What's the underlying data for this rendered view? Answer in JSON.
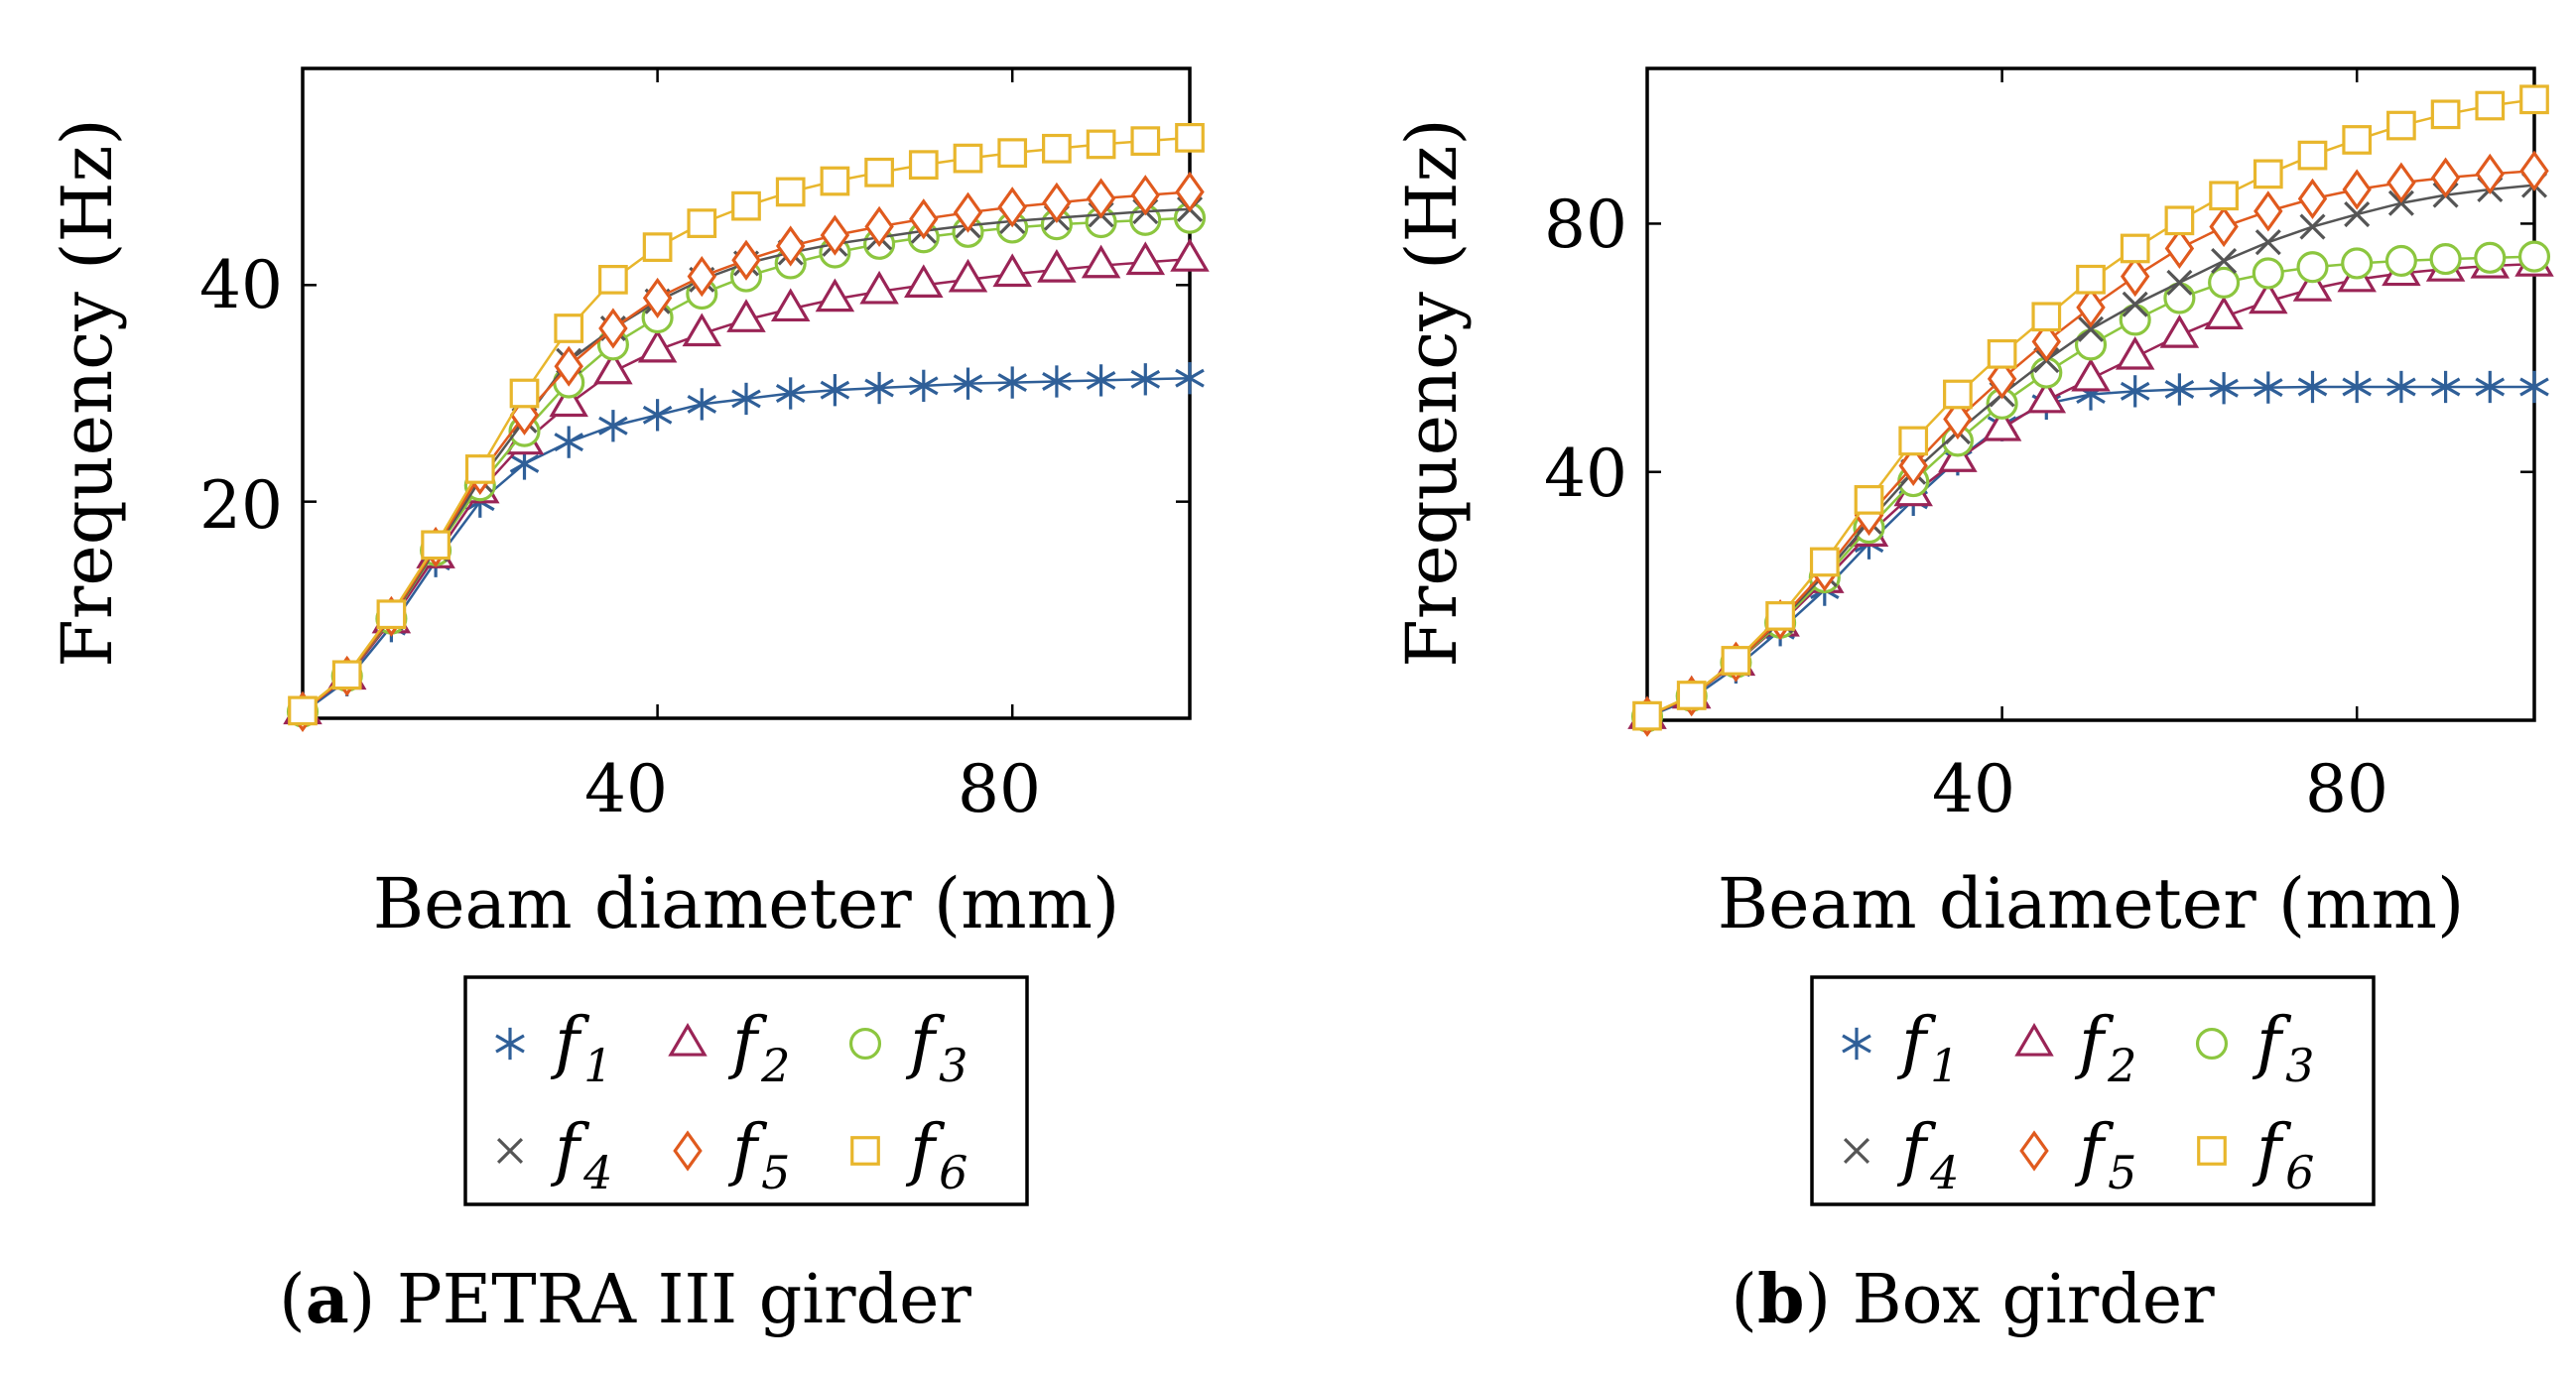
{
  "chart_data": [
    {
      "type": "line",
      "caption_letter": "a",
      "caption_text": "PETRA III girder",
      "xlabel": "Beam diameter (mm)",
      "ylabel": "Frequency (Hz)",
      "xlim": [
        0,
        100
      ],
      "ylim": [
        0,
        60
      ],
      "xticks": [
        40,
        80
      ],
      "yticks": [
        20,
        40
      ],
      "x": [
        0,
        5,
        10,
        15,
        20,
        25,
        30,
        35,
        40,
        45,
        50,
        55,
        60,
        65,
        70,
        75,
        80,
        85,
        90,
        95,
        100
      ],
      "series": [
        {
          "name": "f1",
          "base": "f",
          "sub": "1",
          "color": "#2f5f98",
          "marker": "asterisk",
          "values": [
            0.5,
            3.5,
            8.5,
            14.5,
            20,
            23.5,
            25.5,
            27,
            28,
            29,
            29.5,
            30,
            30.3,
            30.5,
            30.7,
            30.9,
            31,
            31.1,
            31.2,
            31.3,
            31.4
          ]
        },
        {
          "name": "f2",
          "base": "f",
          "sub": "2",
          "color": "#9a2456",
          "marker": "triangle",
          "values": [
            0.6,
            3.8,
            9,
            15,
            21,
            25.5,
            29,
            32,
            34,
            35.5,
            36.8,
            37.8,
            38.7,
            39.4,
            40,
            40.5,
            41,
            41.4,
            41.8,
            42.1,
            42.4
          ]
        },
        {
          "name": "f3",
          "base": "f",
          "sub": "3",
          "color": "#8cc63f",
          "marker": "circle",
          "values": [
            0.6,
            3.9,
            9.2,
            15.5,
            21.5,
            26.5,
            31,
            34.5,
            37,
            39.2,
            40.8,
            42,
            43,
            43.8,
            44.4,
            44.9,
            45.3,
            45.6,
            45.8,
            46,
            46.2
          ]
        },
        {
          "name": "f4",
          "base": "f",
          "sub": "4",
          "color": "#555555",
          "marker": "cross",
          "values": [
            0.6,
            3.9,
            9.3,
            15.6,
            22,
            27.5,
            33,
            36,
            38.5,
            40.5,
            42,
            43,
            43.8,
            44.4,
            45,
            45.5,
            45.9,
            46.2,
            46.5,
            46.8,
            47
          ]
        },
        {
          "name": "f5",
          "base": "f",
          "sub": "5",
          "color": "#e05a1e",
          "marker": "diamond",
          "values": [
            0.6,
            3.9,
            9.4,
            15.8,
            22.5,
            28,
            32.5,
            36,
            38.8,
            40.8,
            42.3,
            43.6,
            44.6,
            45.4,
            46.1,
            46.7,
            47.2,
            47.6,
            48,
            48.3,
            48.6
          ]
        },
        {
          "name": "f6",
          "base": "f",
          "sub": "6",
          "color": "#e8b62c",
          "marker": "square",
          "values": [
            0.7,
            4,
            9.6,
            16,
            23,
            30,
            36,
            40.5,
            43.5,
            45.7,
            47.3,
            48.6,
            49.6,
            50.4,
            51.1,
            51.7,
            52.2,
            52.6,
            53,
            53.3,
            53.6
          ]
        }
      ]
    },
    {
      "type": "line",
      "caption_letter": "b",
      "caption_text": "Box girder",
      "xlabel": "Beam diameter (mm)",
      "ylabel": "Frequency (Hz)",
      "xlim": [
        0,
        100
      ],
      "ylim": [
        0,
        105
      ],
      "xticks": [
        40,
        80
      ],
      "yticks": [
        40,
        80
      ],
      "x": [
        0,
        5,
        10,
        15,
        20,
        25,
        30,
        35,
        40,
        45,
        50,
        55,
        60,
        65,
        70,
        75,
        80,
        85,
        90,
        95,
        100
      ],
      "series": [
        {
          "name": "f1",
          "base": "f",
          "sub": "1",
          "color": "#2f5f98",
          "marker": "asterisk",
          "values": [
            0.5,
            3.5,
            8.5,
            14.5,
            21,
            28.5,
            35.5,
            42,
            47.5,
            51,
            52.5,
            53,
            53.3,
            53.5,
            53.6,
            53.7,
            53.7,
            53.7,
            53.7,
            53.7,
            53.7
          ]
        },
        {
          "name": "f2",
          "base": "f",
          "sub": "2",
          "color": "#9a2456",
          "marker": "triangle",
          "values": [
            0.6,
            3.9,
            9.2,
            15.5,
            22.5,
            30,
            36.5,
            42,
            47,
            51.5,
            55,
            58.5,
            62,
            65,
            67.5,
            69.5,
            71,
            72,
            72.7,
            73.2,
            73.5
          ]
        },
        {
          "name": "f3",
          "base": "f",
          "sub": "3",
          "color": "#8cc63f",
          "marker": "circle",
          "values": [
            0.6,
            3.9,
            9.3,
            15.7,
            23,
            31,
            38.5,
            45,
            51,
            56,
            60.5,
            64.5,
            68,
            70.5,
            72,
            73,
            73.6,
            74,
            74.3,
            74.5,
            74.7
          ]
        },
        {
          "name": "f4",
          "base": "f",
          "sub": "4",
          "color": "#555555",
          "marker": "cross",
          "values": [
            0.6,
            3.9,
            9.4,
            16,
            23.5,
            32,
            40,
            46.5,
            52.5,
            58,
            63,
            67,
            70.5,
            74,
            77,
            79.5,
            81.5,
            83.3,
            84.6,
            85.5,
            86.2
          ]
        },
        {
          "name": "f5",
          "base": "f",
          "sub": "5",
          "color": "#e05a1e",
          "marker": "diamond",
          "values": [
            0.6,
            3.9,
            9.4,
            16.2,
            24,
            33,
            41,
            48.5,
            55,
            61,
            66.5,
            71.5,
            76,
            79.5,
            82,
            84,
            85.5,
            86.6,
            87.4,
            88,
            88.5
          ]
        },
        {
          "name": "f6",
          "base": "f",
          "sub": "6",
          "color": "#e8b62c",
          "marker": "square",
          "values": [
            0.7,
            4,
            9.6,
            16.8,
            25.5,
            35.5,
            45,
            52.5,
            59,
            65,
            71,
            76,
            80.5,
            84.5,
            88,
            91,
            93.5,
            95.8,
            97.6,
            99,
            100
          ]
        }
      ]
    }
  ]
}
